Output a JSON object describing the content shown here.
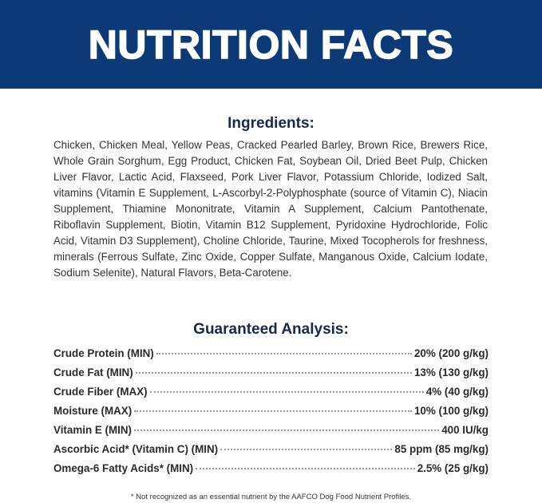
{
  "header": {
    "title": "NUTRITION FACTS",
    "background": "#0b3a76"
  },
  "ingredients": {
    "heading": "Ingredients:",
    "text": "Chicken, Chicken Meal, Yellow Peas, Cracked Pearled Barley, Brown Rice, Brewers Rice, Whole Grain Sorghum, Egg Product, Chicken Fat, Soybean Oil, Dried Beet Pulp, Chicken Liver Flavor, Lactic Acid, Flaxseed, Pork Liver Flavor, Potassium Chloride, Iodized Salt, vitamins (Vitamin E Supplement, L-Ascorbyl-2-Polyphosphate (source of Vitamin C), Niacin Supplement, Thiamine Mononitrate, Vitamin A Supplement, Calcium Pantothenate, Riboflavin Supplement, Biotin, Vitamin B12 Supplement, Pyridoxine Hydrochloride, Folic Acid, Vitamin D3 Supplement), Choline Chloride, Taurine, Mixed Tocopherols for freshness, minerals (Ferrous Sulfate, Zinc Oxide, Copper Sulfate, Manganous Oxide, Calcium Iodate, Sodium Selenite), Natural Flavors, Beta-Carotene."
  },
  "analysis": {
    "heading": "Guaranteed Analysis:",
    "rows": [
      {
        "label": "Crude Protein (MIN)",
        "value": "20% (200 g/kg)"
      },
      {
        "label": "Crude Fat (MIN)",
        "value": "13% (130 g/kg)"
      },
      {
        "label": "Crude Fiber (MAX)",
        "value": "4% (40 g/kg)"
      },
      {
        "label": "Moisture (MAX)",
        "value": "10% (100 g/kg)"
      },
      {
        "label": "Vitamin E (MIN)",
        "value": "400 IU/kg"
      },
      {
        "label": "Ascorbic Acid* (Vitamin C) (MIN)",
        "value": "85 ppm (85 mg/kg)"
      },
      {
        "label": "Omega-6 Fatty Acids* (MIN)",
        "value": "2.5% (25 g/kg)"
      }
    ]
  },
  "footnote": "* Not recognized as an essential nutrient by the AAFCO Dog Food Nutrient Profiles."
}
